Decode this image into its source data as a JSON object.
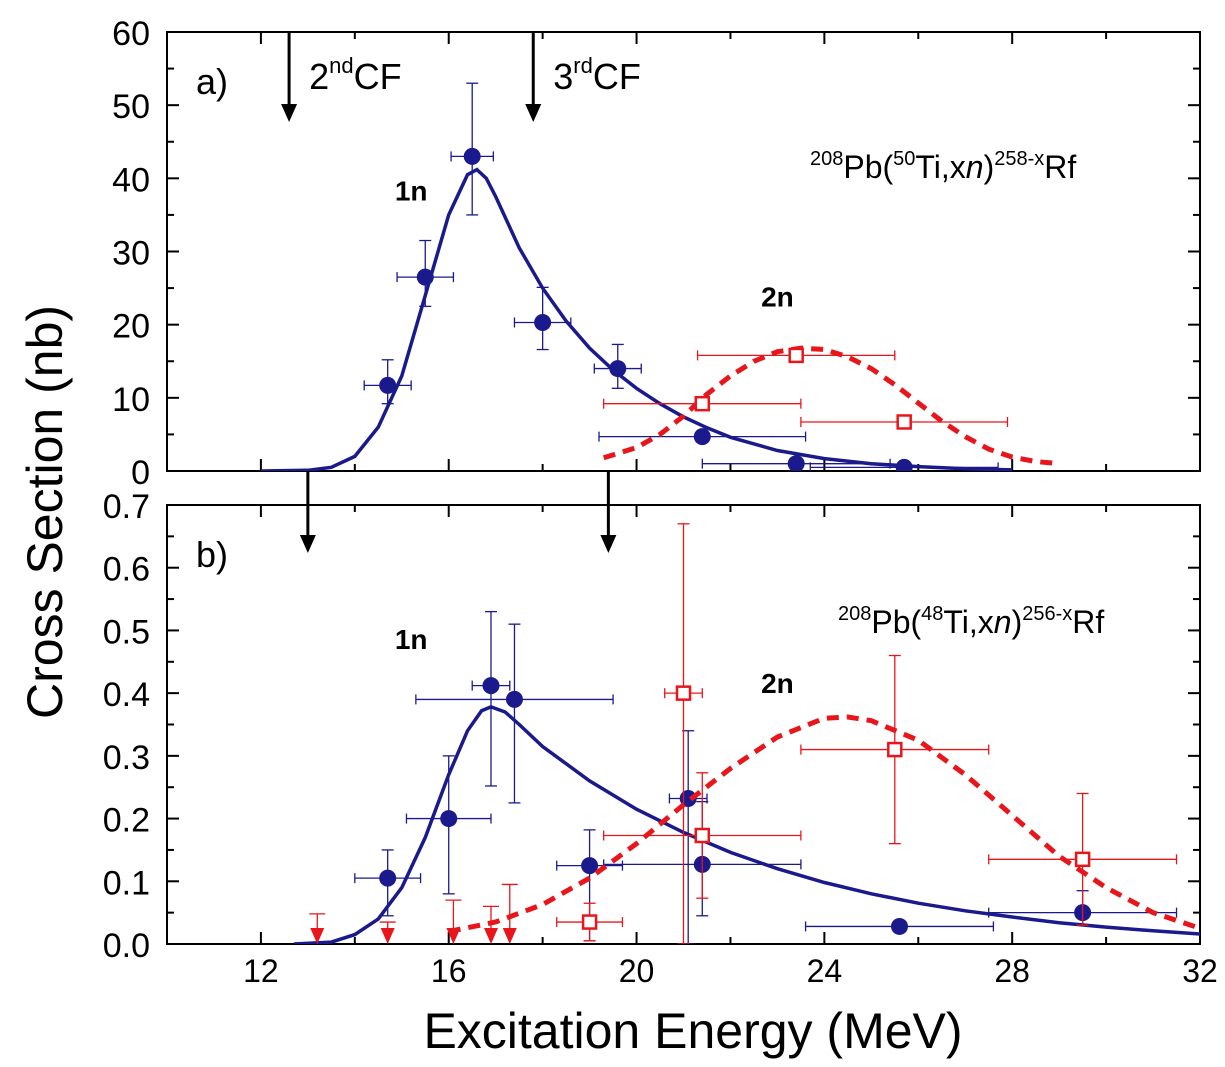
{
  "chart_data": {
    "type": "scatter",
    "xlabel": "Excitation Energy (MeV)",
    "ylabel": "Cross Section (nb)",
    "xlim": [
      10,
      32
    ],
    "xticks": [
      "12",
      "16",
      "20",
      "24",
      "28",
      "32"
    ],
    "colors": {
      "n1": "#1a1a8c",
      "n2": "#e8161b",
      "axis": "#000000"
    },
    "panels": [
      {
        "id": "a",
        "panel_label": "a)",
        "reaction": {
          "A": "208",
          "proj_A": "50",
          "product": "258-x",
          "base1": "Pb(",
          "base2": "Ti,x",
          "n": "n",
          "close": ")",
          "element": "Rf"
        },
        "ylim": [
          0,
          60
        ],
        "yticks": [
          "0",
          "10",
          "20",
          "30",
          "40",
          "50",
          "60"
        ],
        "cf_arrows": [
          {
            "x": 12.6,
            "sup": "nd",
            "pre": "2",
            "post": "CF"
          },
          {
            "x": 17.8,
            "sup": "rd",
            "pre": "3",
            "post": "CF"
          }
        ],
        "channel_labels": [
          {
            "text": "1n",
            "x": 15.2,
            "y": 37
          },
          {
            "text": "2n",
            "x": 23.0,
            "y": 22.5
          }
        ],
        "series": [
          {
            "name": "1n",
            "marker": "filled-circle",
            "points": [
              {
                "x": 14.7,
                "y": 11.7,
                "xerr": 0.5,
                "yerr_lo": 2.5,
                "yerr_hi": 3.5
              },
              {
                "x": 15.5,
                "y": 26.5,
                "xerr": 0.6,
                "yerr_lo": 4.0,
                "yerr_hi": 5.0
              },
              {
                "x": 16.5,
                "y": 43.0,
                "xerr": 0.45,
                "yerr_lo": 8.0,
                "yerr_hi": 10.0
              },
              {
                "x": 18.0,
                "y": 20.3,
                "xerr": 0.6,
                "yerr_lo": 3.7,
                "yerr_hi": 4.8
              },
              {
                "x": 19.6,
                "y": 14.0,
                "xerr": 0.5,
                "yerr_lo": 2.7,
                "yerr_hi": 3.3
              },
              {
                "x": 21.4,
                "y": 4.7,
                "xerr": 2.2,
                "yerr_lo": 0.3,
                "yerr_hi": 0.3
              },
              {
                "x": 23.4,
                "y": 1.0,
                "xerr": 2.0,
                "yerr_lo": 0.3,
                "yerr_hi": 0.3
              },
              {
                "x": 25.7,
                "y": 0.5,
                "xerr": 2.0,
                "yerr_lo": 0.2,
                "yerr_hi": 0.2
              }
            ],
            "fit": [
              [
                12.0,
                0.0
              ],
              [
                13.0,
                0.1
              ],
              [
                13.5,
                0.5
              ],
              [
                14.0,
                2.0
              ],
              [
                14.5,
                6.0
              ],
              [
                15.0,
                13.0
              ],
              [
                15.5,
                24.0
              ],
              [
                16.0,
                35.0
              ],
              [
                16.4,
                40.5
              ],
              [
                16.6,
                41.2
              ],
              [
                16.8,
                40.0
              ],
              [
                17.0,
                37.5
              ],
              [
                17.5,
                30.5
              ],
              [
                18.0,
                25.0
              ],
              [
                18.5,
                20.5
              ],
              [
                19.0,
                16.8
              ],
              [
                19.5,
                13.8
              ],
              [
                20.0,
                11.3
              ],
              [
                20.5,
                9.2
              ],
              [
                21.0,
                7.4
              ],
              [
                21.5,
                5.9
              ],
              [
                22.0,
                4.6
              ],
              [
                23.0,
                2.8
              ],
              [
                24.0,
                1.7
              ],
              [
                25.0,
                1.0
              ],
              [
                26.0,
                0.6
              ],
              [
                27.0,
                0.3
              ],
              [
                28.0,
                0.15
              ]
            ]
          },
          {
            "name": "2n",
            "marker": "open-square",
            "points": [
              {
                "x": 21.4,
                "y": 9.2,
                "xerr": 2.1,
                "yerr_lo": 0.4,
                "yerr_hi": 0.4
              },
              {
                "x": 23.4,
                "y": 15.8,
                "xerr": 2.1,
                "yerr_lo": 0.4,
                "yerr_hi": 0.4
              },
              {
                "x": 25.7,
                "y": 6.7,
                "xerr": 2.2,
                "yerr_lo": 0.4,
                "yerr_hi": 0.4
              }
            ],
            "fit": [
              [
                19.3,
                1.8
              ],
              [
                20.0,
                3.2
              ],
              [
                20.5,
                5.0
              ],
              [
                21.0,
                7.5
              ],
              [
                21.5,
                10.5
              ],
              [
                22.0,
                13.0
              ],
              [
                22.5,
                15.0
              ],
              [
                23.0,
                16.3
              ],
              [
                23.5,
                16.8
              ],
              [
                24.0,
                16.6
              ],
              [
                24.5,
                15.6
              ],
              [
                25.0,
                14.0
              ],
              [
                25.5,
                11.8
              ],
              [
                26.0,
                9.3
              ],
              [
                26.5,
                6.8
              ],
              [
                27.0,
                4.7
              ],
              [
                27.5,
                3.0
              ],
              [
                28.0,
                1.9
              ],
              [
                28.5,
                1.3
              ],
              [
                29.0,
                1.0
              ]
            ]
          }
        ]
      },
      {
        "id": "b",
        "panel_label": "b)",
        "reaction": {
          "A": "208",
          "proj_A": "48",
          "product": "256-x",
          "base1": "Pb(",
          "base2": "Ti,x",
          "n": "n",
          "close": ")",
          "element": "Rf"
        },
        "ylim": [
          0,
          0.7
        ],
        "yticks": [
          "0.0",
          "0.1",
          "0.2",
          "0.3",
          "0.4",
          "0.5",
          "0.6",
          "0.7"
        ],
        "cf_arrows": [
          {
            "x": 13.0
          },
          {
            "x": 19.4
          }
        ],
        "channel_labels": [
          {
            "text": "1n",
            "x": 15.2,
            "y": 0.47
          },
          {
            "text": "2n",
            "x": 23.0,
            "y": 0.4
          }
        ],
        "series": [
          {
            "name": "1n",
            "marker": "filled-circle",
            "points": [
              {
                "x": 14.7,
                "y": 0.105,
                "xerr": 0.7,
                "yerr_lo": 0.06,
                "yerr_hi": 0.045
              },
              {
                "x": 16.0,
                "y": 0.2,
                "xerr": 0.9,
                "yerr_lo": 0.12,
                "yerr_hi": 0.1
              },
              {
                "x": 16.9,
                "y": 0.412,
                "xerr": 0.4,
                "yerr_lo": 0.16,
                "yerr_hi": 0.118
              },
              {
                "x": 17.4,
                "y": 0.39,
                "xerr": 2.1,
                "yerr_lo": 0.165,
                "yerr_hi": 0.12
              },
              {
                "x": 19.0,
                "y": 0.125,
                "xerr": 0.7,
                "yerr_lo": 0.12,
                "yerr_hi": 0.057
              },
              {
                "x": 21.1,
                "y": 0.232,
                "xerr": 0.4,
                "yerr_lo": 0.232,
                "yerr_hi": 0.108
              },
              {
                "x": 21.4,
                "y": 0.127,
                "xerr": 2.1,
                "yerr_lo": 0.082,
                "yerr_hi": 0.1
              },
              {
                "x": 25.6,
                "y": 0.028,
                "xerr": 2.0,
                "yerr_lo": 0.0,
                "yerr_hi": 0.0
              },
              {
                "x": 29.5,
                "y": 0.05,
                "xerr": 2.0,
                "yerr_lo": 0.02,
                "yerr_hi": 0.035
              }
            ],
            "fit": [
              [
                12.7,
                0.0
              ],
              [
                13.5,
                0.003
              ],
              [
                14.0,
                0.015
              ],
              [
                14.5,
                0.04
              ],
              [
                15.0,
                0.09
              ],
              [
                15.5,
                0.17
              ],
              [
                16.0,
                0.27
              ],
              [
                16.4,
                0.34
              ],
              [
                16.7,
                0.372
              ],
              [
                16.9,
                0.378
              ],
              [
                17.2,
                0.37
              ],
              [
                17.5,
                0.35
              ],
              [
                18.0,
                0.315
              ],
              [
                19.0,
                0.26
              ],
              [
                20.0,
                0.215
              ],
              [
                21.0,
                0.178
              ],
              [
                22.0,
                0.146
              ],
              [
                23.0,
                0.12
              ],
              [
                24.0,
                0.098
              ],
              [
                25.0,
                0.08
              ],
              [
                26.0,
                0.065
              ],
              [
                27.0,
                0.053
              ],
              [
                28.0,
                0.043
              ],
              [
                29.0,
                0.034
              ],
              [
                30.0,
                0.027
              ],
              [
                31.0,
                0.021
              ],
              [
                32.0,
                0.016
              ]
            ]
          },
          {
            "name": "2n",
            "marker": "open-square",
            "points": [
              {
                "x": 19.0,
                "y": 0.035,
                "xerr": 0.7,
                "yerr_lo": 0.03,
                "yerr_hi": 0.03
              },
              {
                "x": 21.0,
                "y": 0.4,
                "xerr": 0.4,
                "yerr_lo": 0.4,
                "yerr_hi": 0.27
              },
              {
                "x": 21.4,
                "y": 0.173,
                "xerr": 2.1,
                "yerr_lo": 0.1,
                "yerr_hi": 0.1
              },
              {
                "x": 25.5,
                "y": 0.31,
                "xerr": 2.0,
                "yerr_lo": 0.15,
                "yerr_hi": 0.15
              },
              {
                "x": 29.5,
                "y": 0.135,
                "xerr": 2.0,
                "yerr_lo": 0.105,
                "yerr_hi": 0.105
              }
            ],
            "limits": [
              {
                "x": 13.2,
                "y": 0.0,
                "top": 0.048
              },
              {
                "x": 14.7,
                "y": 0.0,
                "top": 0.035
              },
              {
                "x": 16.1,
                "y": 0.0,
                "top": 0.07
              },
              {
                "x": 16.9,
                "y": 0.0,
                "top": 0.06
              },
              {
                "x": 17.3,
                "y": 0.0,
                "top": 0.095
              }
            ],
            "fit": [
              [
                16.0,
                0.02
              ],
              [
                17.0,
                0.035
              ],
              [
                18.0,
                0.063
              ],
              [
                19.0,
                0.105
              ],
              [
                20.0,
                0.16
              ],
              [
                21.0,
                0.222
              ],
              [
                22.0,
                0.28
              ],
              [
                23.0,
                0.33
              ],
              [
                24.0,
                0.36
              ],
              [
                24.5,
                0.362
              ],
              [
                25.0,
                0.356
              ],
              [
                26.0,
                0.325
              ],
              [
                27.0,
                0.27
              ],
              [
                28.0,
                0.205
              ],
              [
                29.0,
                0.14
              ],
              [
                30.0,
                0.09
              ],
              [
                31.0,
                0.05
              ],
              [
                32.0,
                0.025
              ]
            ]
          }
        ]
      }
    ]
  }
}
